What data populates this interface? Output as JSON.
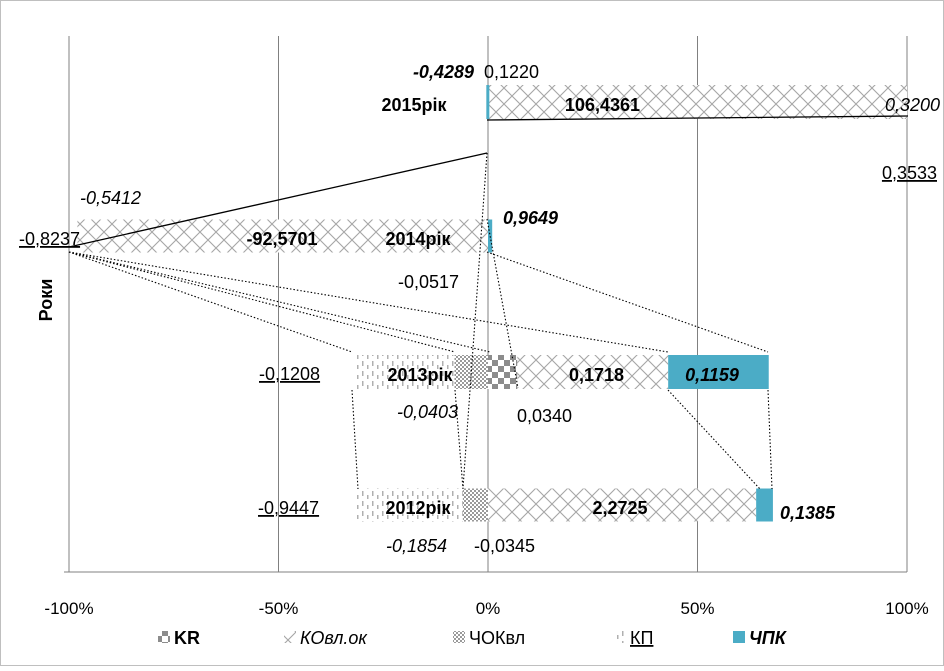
{
  "chart_data": {
    "type": "bar",
    "orientation": "horizontal",
    "stacking": "percent",
    "ylabel": "Роки",
    "xlim": [
      -100,
      100
    ],
    "x_ticks": [
      "-100%",
      "-50%",
      "0%",
      "50%",
      "100%"
    ],
    "grid": true,
    "legend_position": "bottom",
    "categories": [
      "2015рік",
      "2014рік",
      "2013рік",
      "2012рік"
    ],
    "legend": [
      {
        "key": "KR",
        "label": "KR",
        "bold": true,
        "italic": false,
        "underline": false
      },
      {
        "key": "KO",
        "label": "КОвл.ок",
        "bold": false,
        "italic": true,
        "underline": false
      },
      {
        "key": "CHOK",
        "label": "ЧОКвл",
        "bold": false,
        "italic": false,
        "underline": false
      },
      {
        "key": "KP",
        "label": "КП",
        "bold": false,
        "italic": false,
        "underline": true
      },
      {
        "key": "CHPK",
        "label": "ЧПК",
        "bold": true,
        "italic": true,
        "underline": false
      }
    ],
    "series": [
      {
        "key": "KR",
        "values": [
          0.122,
          -0.0517,
          0.034,
          -0.0345
        ]
      },
      {
        "key": "KO",
        "values": [
          106.4361,
          -92.5701,
          0.1718,
          2.2725
        ]
      },
      {
        "key": "CHOK",
        "values": [
          0.32,
          -0.5412,
          -0.0403,
          -0.1854
        ]
      },
      {
        "key": "KP",
        "values": [
          0.3533,
          -0.8237,
          -0.1208,
          -0.9447
        ]
      },
      {
        "key": "CHPK",
        "values": [
          -0.4289,
          0.9649,
          0.1159,
          0.1385
        ]
      }
    ],
    "bar_extents_percent": {
      "2015рік": {
        "KO": [
          0,
          100
        ],
        "CHPK": [
          -0.4,
          0
        ]
      },
      "2014рік": {
        "KO": [
          -98,
          0
        ],
        "CHPK": [
          0,
          1
        ]
      },
      "2013рік": {
        "KP": [
          -32,
          -8
        ],
        "CHOK": [
          -8,
          0
        ],
        "KR": [
          0,
          7
        ],
        "KO": [
          7,
          43
        ],
        "CHPK": [
          43,
          67
        ]
      },
      "2012рік": {
        "KP": [
          -32,
          -6
        ],
        "CHOK": [
          -6,
          0
        ],
        "KO": [
          0,
          64
        ],
        "CHPK": [
          64,
          68
        ]
      }
    },
    "data_labels": [
      {
        "cat": "2015рік",
        "series": "CHPK",
        "text": "-0,4289",
        "style": "bi"
      },
      {
        "cat": "2015рік",
        "series": "KR",
        "text": "0,1220",
        "style": ""
      },
      {
        "cat": "2015рік",
        "series": "KO",
        "text": "106,4361",
        "style": "b"
      },
      {
        "cat": "2015рік",
        "series": "CHOK",
        "text": "0,3200",
        "style": "i"
      },
      {
        "cat": "2015рік",
        "series": "KP",
        "text": "0,3533",
        "style": "u"
      },
      {
        "cat": "2014рік",
        "series": "CHOK",
        "text": "-0,5412",
        "style": "i"
      },
      {
        "cat": "2014рік",
        "series": "KP",
        "text": "-0,8237",
        "style": "u"
      },
      {
        "cat": "2014рік",
        "series": "KO",
        "text": "-92,5701",
        "style": "b"
      },
      {
        "cat": "2014рік",
        "series": "CHPK",
        "text": "0,9649",
        "style": "bi"
      },
      {
        "cat": "2014рік",
        "series": "KR",
        "text": "-0,0517",
        "style": ""
      },
      {
        "cat": "2013рік",
        "series": "KP",
        "text": "-0,1208",
        "style": "u"
      },
      {
        "cat": "2013рік",
        "series": "KO",
        "text": "0,1718",
        "style": "b"
      },
      {
        "cat": "2013рік",
        "series": "CHPK",
        "text": "0,1159",
        "style": "bi"
      },
      {
        "cat": "2013рік",
        "series": "CHOK",
        "text": "-0,0403",
        "style": "i"
      },
      {
        "cat": "2013рік",
        "series": "KR",
        "text": "0,0340",
        "style": ""
      },
      {
        "cat": "2012рік",
        "series": "KP",
        "text": "-0,9447",
        "style": "u"
      },
      {
        "cat": "2012рік",
        "series": "KO",
        "text": "2,2725",
        "style": "b"
      },
      {
        "cat": "2012рік",
        "series": "CHPK",
        "text": "0,1385",
        "style": "bi"
      },
      {
        "cat": "2012рік",
        "series": "CHOK",
        "text": "-0,1854",
        "style": "i"
      },
      {
        "cat": "2012рік",
        "series": "KR",
        "text": "-0,0345",
        "style": ""
      }
    ],
    "colors": {
      "CHPK": "#4bacc6",
      "pattern": "#a6a6a6",
      "axis": "#808080",
      "grid": "#808080",
      "border": "#bfbfbf"
    }
  }
}
